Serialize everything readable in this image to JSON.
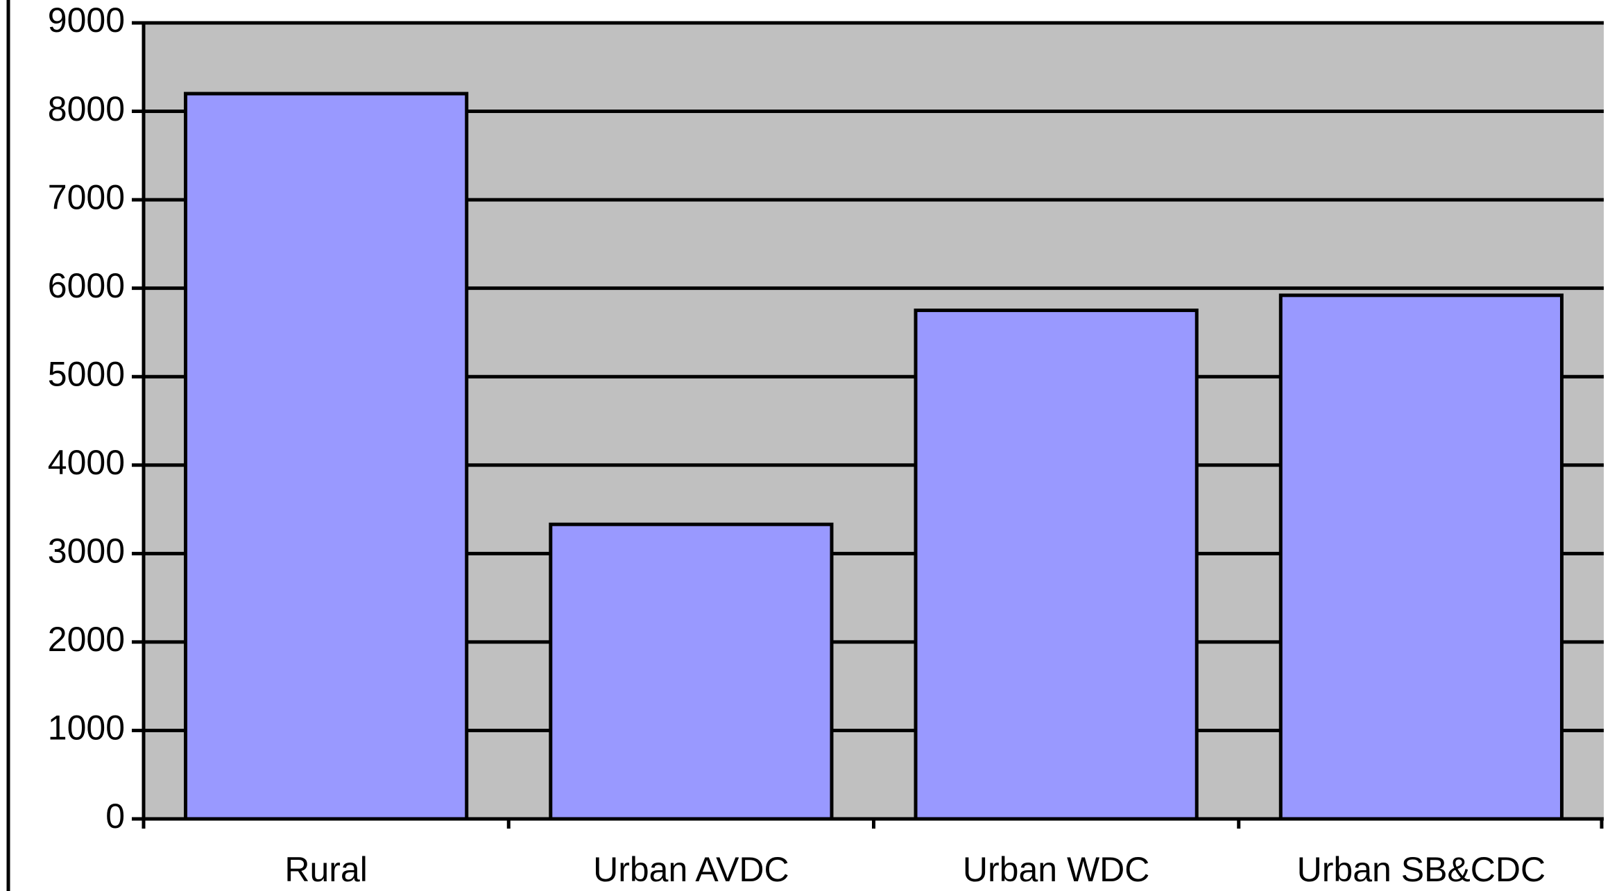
{
  "chart_data": {
    "type": "bar",
    "categories": [
      "Rural",
      "Urban AVDC",
      "Urban WDC",
      "Urban SB&CDC"
    ],
    "values": [
      8200,
      3330,
      5750,
      5920
    ],
    "color": "#9999ff",
    "ylim": [
      0,
      9000
    ],
    "yticks": [
      0,
      1000,
      2000,
      3000,
      4000,
      5000,
      6000,
      7000,
      8000,
      9000
    ],
    "grid": true
  }
}
